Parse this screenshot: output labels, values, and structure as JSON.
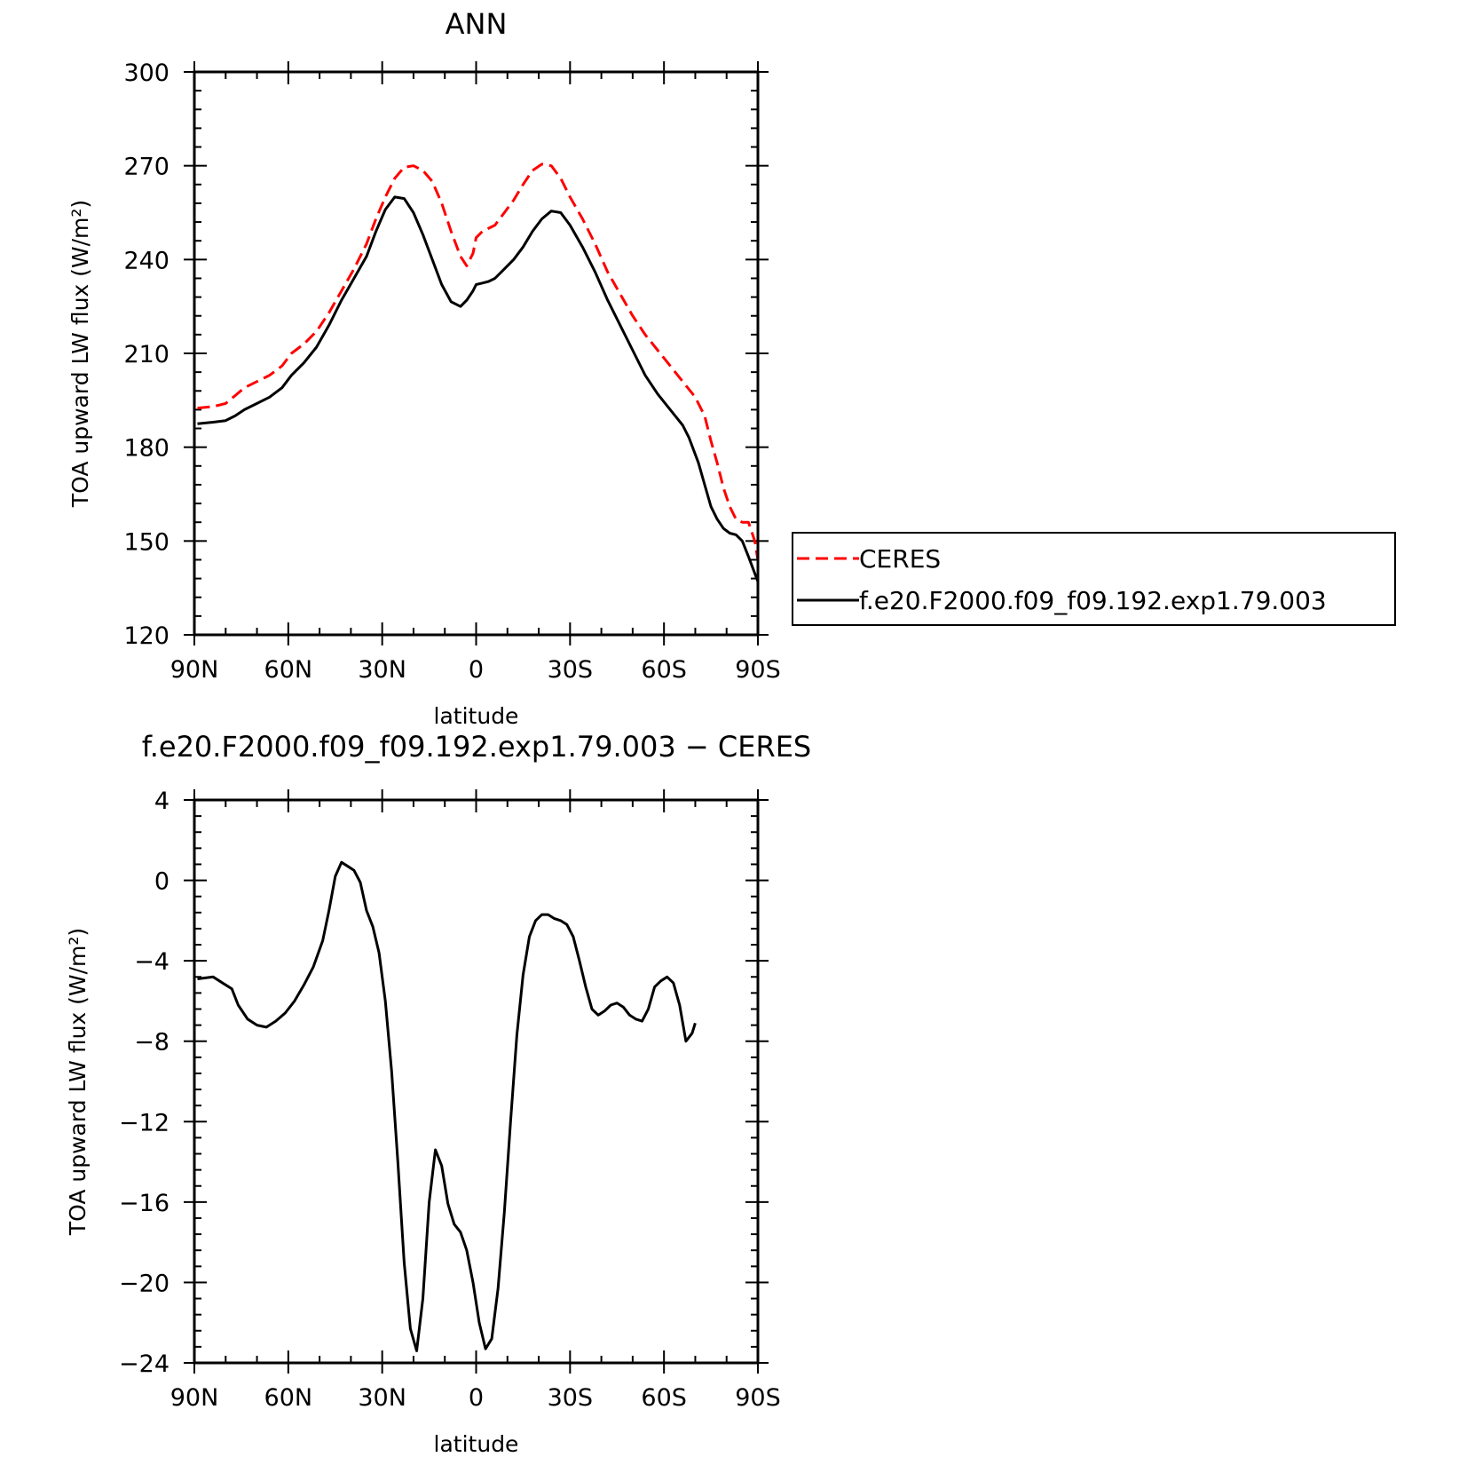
{
  "chart_data": [
    {
      "type": "line",
      "title": "ANN",
      "xlabel": "latitude",
      "ylabel": "TOA upward LW flux (W/m²)",
      "x_axis": {
        "range": [
          90,
          -90
        ],
        "ticks": [
          90,
          60,
          30,
          0,
          -30,
          -60,
          -90
        ],
        "tick_labels": [
          "90N",
          "60N",
          "30N",
          "0",
          "30S",
          "60S",
          "90S"
        ]
      },
      "y_axis": {
        "range": [
          120,
          300
        ],
        "ticks": [
          120,
          150,
          180,
          210,
          240,
          270,
          300
        ],
        "tick_labels": [
          "120",
          "150",
          "180",
          "210",
          "240",
          "270",
          "300"
        ]
      },
      "legend": {
        "position": "right"
      },
      "series": [
        {
          "name": "CERES",
          "color": "#ff0000",
          "style": "dashed",
          "points": [
            [
              89,
              192.5
            ],
            [
              84,
              193
            ],
            [
              80,
              194
            ],
            [
              77,
              196.5
            ],
            [
              74,
              199
            ],
            [
              70,
              201
            ],
            [
              66,
              203
            ],
            [
              62,
              206
            ],
            [
              59,
              210
            ],
            [
              55,
              213
            ],
            [
              51,
              217
            ],
            [
              47,
              223
            ],
            [
              43,
              230
            ],
            [
              39,
              237
            ],
            [
              35,
              245
            ],
            [
              32,
              253
            ],
            [
              29,
              260
            ],
            [
              26,
              266
            ],
            [
              23,
              269.5
            ],
            [
              20,
              270
            ],
            [
              17,
              268.5
            ],
            [
              14,
              265
            ],
            [
              11,
              258
            ],
            [
              8,
              249
            ],
            [
              5,
              241
            ],
            [
              3,
              238
            ],
            [
              1,
              242
            ],
            [
              0,
              247
            ],
            [
              -2,
              249
            ],
            [
              -4,
              250
            ],
            [
              -6,
              251
            ],
            [
              -9,
              255
            ],
            [
              -12,
              259
            ],
            [
              -15,
              264
            ],
            [
              -18,
              268.5
            ],
            [
              -21,
              270.5
            ],
            [
              -24,
              270
            ],
            [
              -27,
              266
            ],
            [
              -30,
              260
            ],
            [
              -34,
              253
            ],
            [
              -38,
              245
            ],
            [
              -42,
              236
            ],
            [
              -46,
              229
            ],
            [
              -50,
              222
            ],
            [
              -54,
              216
            ],
            [
              -58,
              211
            ],
            [
              -62,
              206
            ],
            [
              -66,
              201
            ],
            [
              -70,
              196
            ],
            [
              -73,
              190
            ],
            [
              -75,
              182
            ],
            [
              -77,
              175
            ],
            [
              -79,
              167
            ],
            [
              -81,
              161
            ],
            [
              -83,
              157
            ],
            [
              -85,
              156
            ],
            [
              -87,
              156
            ],
            [
              -89,
              150
            ],
            [
              -90,
              144
            ]
          ]
        },
        {
          "name": "f.e20.F2000.f09_f09.192.exp1.79.003",
          "color": "#000000",
          "style": "solid",
          "points": [
            [
              89,
              187.5
            ],
            [
              84,
              188
            ],
            [
              80,
              188.5
            ],
            [
              77,
              190
            ],
            [
              74,
              192
            ],
            [
              70,
              194
            ],
            [
              66,
              196
            ],
            [
              62,
              199
            ],
            [
              59,
              203
            ],
            [
              55,
              207
            ],
            [
              51,
              212
            ],
            [
              47,
              219
            ],
            [
              43,
              227
            ],
            [
              39,
              234
            ],
            [
              35,
              241
            ],
            [
              32,
              249
            ],
            [
              29,
              256
            ],
            [
              26,
              260
            ],
            [
              23,
              259.5
            ],
            [
              20,
              255
            ],
            [
              17,
              248
            ],
            [
              14,
              240
            ],
            [
              11,
              232
            ],
            [
              8,
              226.5
            ],
            [
              5,
              225
            ],
            [
              3,
              227
            ],
            [
              1,
              230
            ],
            [
              0,
              232
            ],
            [
              -2,
              232.5
            ],
            [
              -4,
              233
            ],
            [
              -6,
              234
            ],
            [
              -9,
              237
            ],
            [
              -12,
              240
            ],
            [
              -15,
              244
            ],
            [
              -18,
              249
            ],
            [
              -21,
              253
            ],
            [
              -24,
              255.5
            ],
            [
              -27,
              255
            ],
            [
              -30,
              251
            ],
            [
              -34,
              244
            ],
            [
              -38,
              236
            ],
            [
              -42,
              227
            ],
            [
              -46,
              219
            ],
            [
              -50,
              211
            ],
            [
              -54,
              203
            ],
            [
              -58,
              197
            ],
            [
              -62,
              192
            ],
            [
              -66,
              187
            ],
            [
              -68,
              183
            ],
            [
              -71,
              175
            ],
            [
              -73,
              168
            ],
            [
              -75,
              161
            ],
            [
              -77,
              157
            ],
            [
              -79,
              154
            ],
            [
              -81,
              152.5
            ],
            [
              -83,
              152
            ],
            [
              -85,
              150
            ],
            [
              -87,
              145
            ],
            [
              -90,
              137
            ]
          ]
        }
      ]
    },
    {
      "type": "line",
      "title": "f.e20.F2000.f09_f09.192.exp1.79.003 − CERES",
      "xlabel": "latitude",
      "ylabel": "TOA upward LW flux (W/m²)",
      "x_axis": {
        "range": [
          90,
          -90
        ],
        "ticks": [
          90,
          60,
          30,
          0,
          -30,
          -60,
          -90
        ],
        "tick_labels": [
          "90N",
          "60N",
          "30N",
          "0",
          "30S",
          "60S",
          "90S"
        ]
      },
      "y_axis": {
        "range": [
          -24,
          4
        ],
        "ticks": [
          -24,
          -20,
          -16,
          -12,
          -8,
          -4,
          0,
          4
        ],
        "tick_labels": [
          "−24",
          "−20",
          "−16",
          "−12",
          "−8",
          "−4",
          "0",
          "4"
        ]
      },
      "series": [
        {
          "color": "#000000",
          "style": "solid",
          "points": [
            [
              89,
              -4.9
            ],
            [
              84,
              -4.8
            ],
            [
              80,
              -5.2
            ],
            [
              78,
              -5.4
            ],
            [
              76,
              -6.2
            ],
            [
              73,
              -6.9
            ],
            [
              70,
              -7.2
            ],
            [
              67,
              -7.3
            ],
            [
              64,
              -7.0
            ],
            [
              61,
              -6.6
            ],
            [
              58,
              -6.0
            ],
            [
              55,
              -5.2
            ],
            [
              52,
              -4.3
            ],
            [
              49,
              -3.0
            ],
            [
              47,
              -1.5
            ],
            [
              45,
              0.2
            ],
            [
              43,
              0.9
            ],
            [
              41,
              0.7
            ],
            [
              39,
              0.5
            ],
            [
              37,
              -0.1
            ],
            [
              35,
              -1.5
            ],
            [
              33,
              -2.3
            ],
            [
              31,
              -3.6
            ],
            [
              29,
              -6.0
            ],
            [
              27,
              -9.5
            ],
            [
              25,
              -14.0
            ],
            [
              23,
              -19.0
            ],
            [
              21,
              -22.3
            ],
            [
              19,
              -23.4
            ],
            [
              17,
              -20.8
            ],
            [
              15,
              -16.0
            ],
            [
              13,
              -13.4
            ],
            [
              11,
              -14.2
            ],
            [
              9,
              -16.1
            ],
            [
              7,
              -17.1
            ],
            [
              5,
              -17.5
            ],
            [
              3,
              -18.4
            ],
            [
              1,
              -20.0
            ],
            [
              -1,
              -22.0
            ],
            [
              -3,
              -23.3
            ],
            [
              -5,
              -22.8
            ],
            [
              -7,
              -20.3
            ],
            [
              -9,
              -16.5
            ],
            [
              -11,
              -12.0
            ],
            [
              -13,
              -7.7
            ],
            [
              -15,
              -4.7
            ],
            [
              -17,
              -2.8
            ],
            [
              -19,
              -2.0
            ],
            [
              -21,
              -1.7
            ],
            [
              -23,
              -1.7
            ],
            [
              -25,
              -1.9
            ],
            [
              -27,
              -2.0
            ],
            [
              -29,
              -2.2
            ],
            [
              -31,
              -2.8
            ],
            [
              -33,
              -4.0
            ],
            [
              -35,
              -5.3
            ],
            [
              -37,
              -6.4
            ],
            [
              -39,
              -6.7
            ],
            [
              -41,
              -6.5
            ],
            [
              -43,
              -6.2
            ],
            [
              -45,
              -6.1
            ],
            [
              -47,
              -6.3
            ],
            [
              -49,
              -6.7
            ],
            [
              -51,
              -6.9
            ],
            [
              -53,
              -7.0
            ],
            [
              -55,
              -6.4
            ],
            [
              -57,
              -5.3
            ],
            [
              -59,
              -5.0
            ],
            [
              -61,
              -4.8
            ],
            [
              -63,
              -5.1
            ],
            [
              -65,
              -6.2
            ],
            [
              -67,
              -8.0
            ],
            [
              -69,
              -7.6
            ],
            [
              -70,
              -7.1
            ]
          ]
        }
      ]
    }
  ]
}
